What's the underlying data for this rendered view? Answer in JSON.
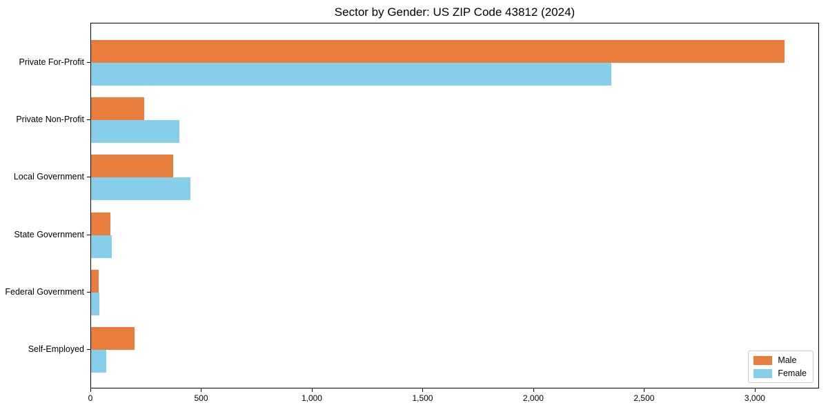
{
  "chart_data": {
    "type": "bar",
    "orientation": "horizontal",
    "title": "Sector by Gender: US ZIP Code 43812 (2024)",
    "categories": [
      "Private For-Profit",
      "Private Non-Profit",
      "Local Government",
      "State Government",
      "Federal Government",
      "Self-Employed"
    ],
    "series": [
      {
        "name": "Male",
        "color": "#e87d3e",
        "values": [
          3130,
          240,
          370,
          88,
          34,
          196
        ]
      },
      {
        "name": "Female",
        "color": "#87ceeb",
        "values": [
          2350,
          400,
          450,
          95,
          37,
          69
        ]
      }
    ],
    "xlabel": "",
    "ylabel": "",
    "xlim": [
      0,
      3290
    ],
    "xticks": [
      0,
      500,
      1000,
      1500,
      2000,
      2500,
      3000
    ],
    "xtick_labels": [
      "0",
      "500",
      "1,000",
      "1,500",
      "2,000",
      "2,500",
      "3,000"
    ],
    "grid": false,
    "legend_position": "lower right",
    "legend_labels": [
      "Male",
      "Female"
    ]
  }
}
